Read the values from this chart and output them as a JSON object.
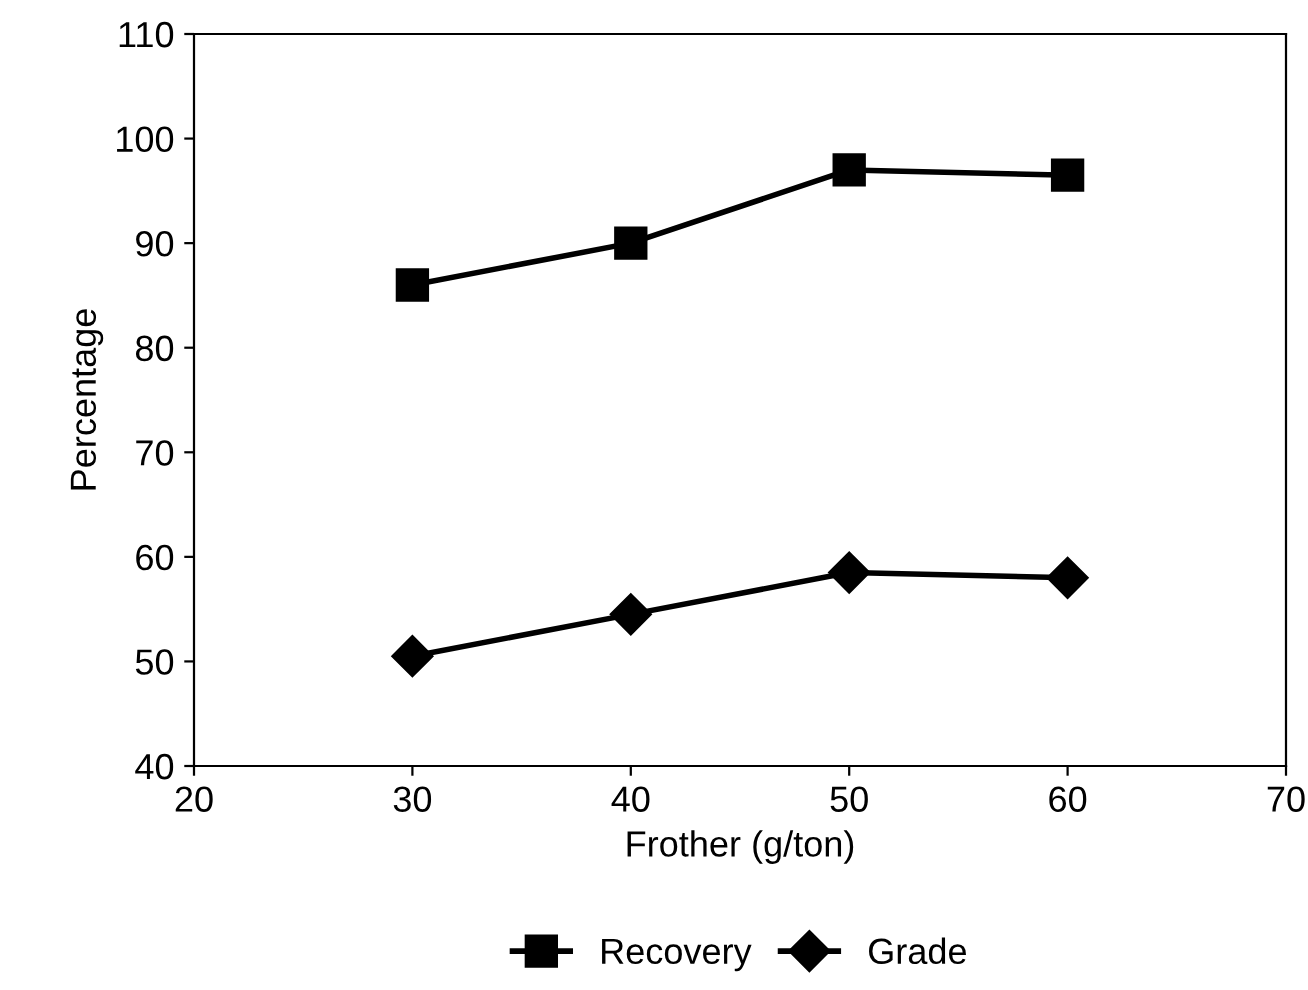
{
  "chart_data": {
    "type": "line",
    "xlabel": "Frother (g/ton)",
    "ylabel": "Percentage",
    "x": [
      30,
      40,
      50,
      60
    ],
    "series": [
      {
        "name": "Recovery",
        "color": "#000000",
        "marker": "square",
        "values": [
          86,
          90,
          97,
          96.5
        ]
      },
      {
        "name": "Grade",
        "color": "#000000",
        "marker": "diamond",
        "values": [
          50.5,
          54.5,
          58.5,
          58
        ]
      }
    ],
    "xlim": [
      20,
      70
    ],
    "xticks": [
      20,
      30,
      40,
      50,
      60,
      70
    ],
    "ylim": [
      40,
      110
    ],
    "yticks": [
      40,
      50,
      60,
      70,
      80,
      90,
      100,
      110
    ],
    "grid": false,
    "legend": "bottom",
    "line_style": "solid"
  }
}
